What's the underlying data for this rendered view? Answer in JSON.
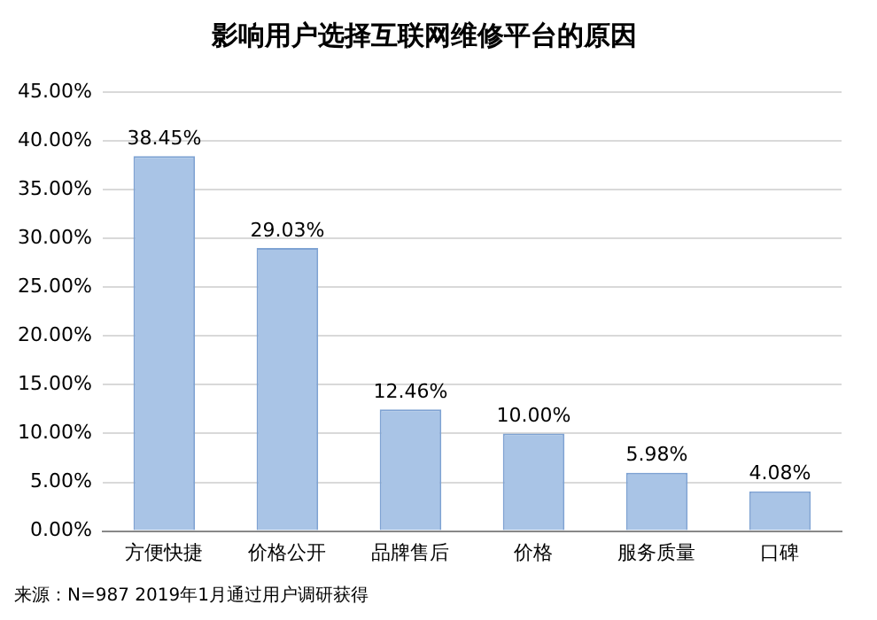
{
  "chart_data": {
    "type": "bar",
    "title": "影响用户选择互联网维修平台的原因",
    "categories": [
      "方便快捷",
      "价格公开",
      "品牌售后",
      "价格",
      "服务质量",
      "口碑"
    ],
    "values": [
      38.45,
      29.03,
      12.46,
      10.0,
      5.98,
      4.08
    ],
    "value_labels": [
      "38.45%",
      "29.03%",
      "12.46%",
      "10.00%",
      "5.98%",
      "4.08%"
    ],
    "color": "#a9c4e6",
    "ylim": [
      0,
      45
    ],
    "yticks": [
      {
        "value": 0,
        "label": "0.00%"
      },
      {
        "value": 5,
        "label": "5.00%"
      },
      {
        "value": 10,
        "label": "10.00%"
      },
      {
        "value": 15,
        "label": "15.00%"
      },
      {
        "value": 20,
        "label": "20.00%"
      },
      {
        "value": 25,
        "label": "25.00%"
      },
      {
        "value": 30,
        "label": "30.00%"
      },
      {
        "value": 35,
        "label": "35.00%"
      },
      {
        "value": 40,
        "label": "40.00%"
      },
      {
        "value": 45,
        "label": "45.00%"
      }
    ],
    "grid": "y",
    "annotations": [
      "来源：N=987 2019年1月通过用户调研获得"
    ]
  }
}
